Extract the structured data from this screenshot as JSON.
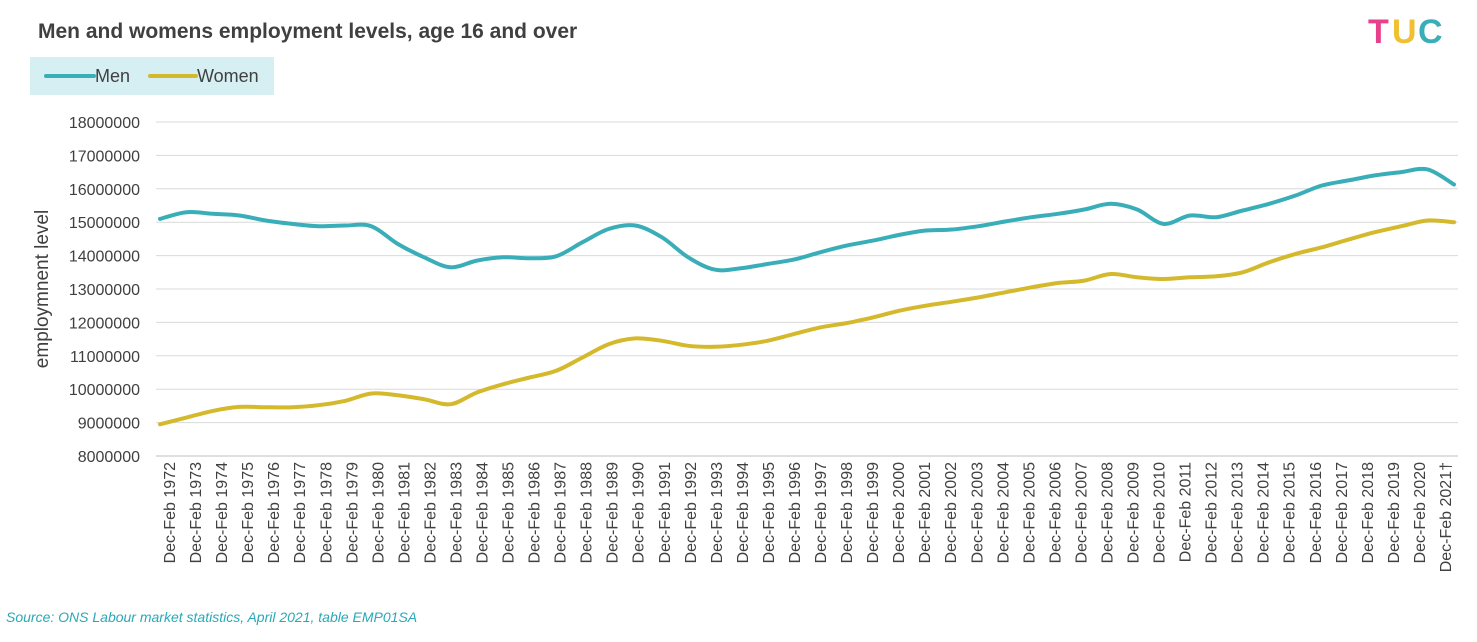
{
  "logo": {
    "text_t": "T",
    "text_u": "U",
    "text_c": "C"
  },
  "source": "Source: ONS Labour market statistics, April 2021, table EMP01SA",
  "colors": {
    "men": "#3aaeb8",
    "women": "#d4b92c",
    "grid": "#d9d9d9",
    "legend_bg": "#d6eff2",
    "text": "#404040"
  },
  "chart_data": {
    "type": "line",
    "title": "Men and womens employment levels, age 16 and over",
    "ylabel": "employmnent level",
    "xlabel": "",
    "ylim": [
      8000000,
      18000000
    ],
    "yticks": [
      8000000,
      9000000,
      10000000,
      11000000,
      12000000,
      13000000,
      14000000,
      15000000,
      16000000,
      17000000,
      18000000
    ],
    "grid": true,
    "legend": "top-left",
    "categories": [
      "Dec-Feb 1972",
      "Dec-Feb 1973",
      "Dec-Feb 1974",
      "Dec-Feb 1975",
      "Dec-Feb 1976",
      "Dec-Feb 1977",
      "Dec-Feb 1978",
      "Dec-Feb 1979",
      "Dec-Feb 1980",
      "Dec-Feb 1981",
      "Dec-Feb 1982",
      "Dec-Feb 1983",
      "Dec-Feb 1984",
      "Dec-Feb 1985",
      "Dec-Feb 1986",
      "Dec-Feb 1987",
      "Dec-Feb 1988",
      "Dec-Feb 1989",
      "Dec-Feb 1990",
      "Dec-Feb 1991",
      "Dec-Feb 1992",
      "Dec-Feb 1993",
      "Dec-Feb 1994",
      "Dec-Feb 1995",
      "Dec-Feb 1996",
      "Dec-Feb 1997",
      "Dec-Feb 1998",
      "Dec-Feb 1999",
      "Dec-Feb 2000",
      "Dec-Feb 2001",
      "Dec-Feb 2002",
      "Dec-Feb 2003",
      "Dec-Feb 2004",
      "Dec-Feb 2005",
      "Dec-Feb 2006",
      "Dec-Feb 2007",
      "Dec-Feb 2008",
      "Dec-Feb 2009",
      "Dec-Feb 2010",
      "Dec-Feb 2011",
      "Dec-Feb 2012",
      "Dec-Feb 2013",
      "Dec-Feb 2014",
      "Dec-Feb 2015",
      "Dec-Feb 2016",
      "Dec-Feb 2017",
      "Dec-Feb 2018",
      "Dec-Feb 2019",
      "Dec-Feb 2020",
      "Dec-Feb 2021†"
    ],
    "series": [
      {
        "name": "Men",
        "values": [
          15100000,
          15300000,
          15250000,
          15200000,
          15050000,
          14950000,
          14880000,
          14900000,
          14880000,
          14350000,
          13950000,
          13650000,
          13850000,
          13950000,
          13920000,
          13980000,
          14400000,
          14800000,
          14900000,
          14550000,
          13950000,
          13580000,
          13620000,
          13750000,
          13880000,
          14100000,
          14300000,
          14450000,
          14620000,
          14750000,
          14780000,
          14880000,
          15020000,
          15150000,
          15250000,
          15380000,
          15550000,
          15380000,
          14950000,
          15200000,
          15150000,
          15350000,
          15550000,
          15800000,
          16100000,
          16250000,
          16400000,
          16500000,
          16580000,
          16130000
        ]
      },
      {
        "name": "Women",
        "values": [
          8950000,
          9150000,
          9350000,
          9470000,
          9460000,
          9460000,
          9520000,
          9650000,
          9870000,
          9820000,
          9700000,
          9550000,
          9900000,
          10150000,
          10350000,
          10550000,
          10950000,
          11350000,
          11520000,
          11450000,
          11300000,
          11270000,
          11330000,
          11450000,
          11650000,
          11850000,
          11980000,
          12150000,
          12350000,
          12500000,
          12620000,
          12750000,
          12900000,
          13050000,
          13180000,
          13250000,
          13450000,
          13350000,
          13300000,
          13350000,
          13380000,
          13500000,
          13800000,
          14050000,
          14250000,
          14480000,
          14700000,
          14880000,
          15050000,
          15000000
        ]
      }
    ]
  }
}
